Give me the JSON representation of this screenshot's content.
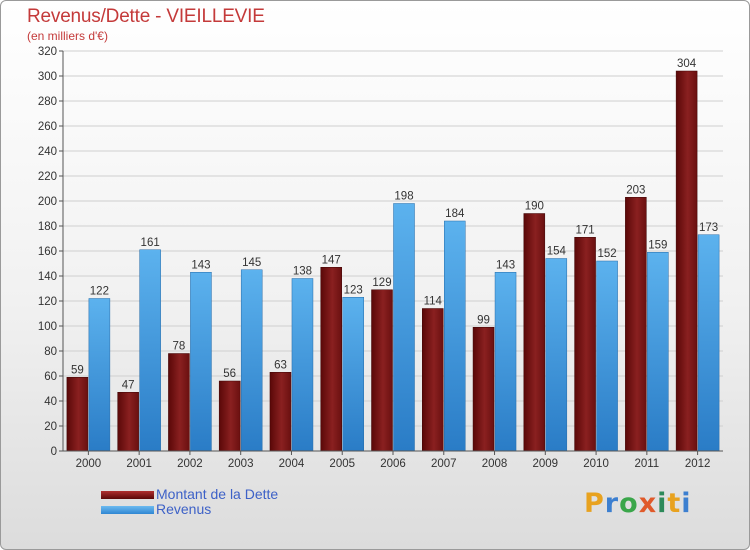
{
  "title": "Revenus/Dette - VIEILLEVIE",
  "subtitle": "(en milliers d'€)",
  "chart_data": {
    "type": "bar",
    "title": "Revenus/Dette - VIEILLEVIE",
    "ylabel": "(en milliers d'€)",
    "ylim": [
      0,
      320
    ],
    "yticks": [
      0,
      20,
      40,
      60,
      80,
      100,
      120,
      140,
      160,
      180,
      200,
      220,
      240,
      260,
      280,
      300,
      320
    ],
    "grid": true,
    "categories": [
      "2000",
      "2001",
      "2002",
      "2003",
      "2004",
      "2005",
      "2006",
      "2007",
      "2008",
      "2009",
      "2010",
      "2011",
      "2012"
    ],
    "series": [
      {
        "name": "Montant de la Dette",
        "color": "#7a1717",
        "values": [
          59,
          47,
          78,
          56,
          63,
          147,
          129,
          114,
          99,
          190,
          171,
          203,
          304
        ]
      },
      {
        "name": "Revenus",
        "color": "#3d97df",
        "values": [
          122,
          161,
          143,
          145,
          138,
          123,
          198,
          184,
          143,
          154,
          152,
          159,
          173
        ]
      }
    ],
    "legend_position": "bottom-left"
  },
  "legend": [
    {
      "label": "Montant de la Dette",
      "color": "#7a1717"
    },
    {
      "label": "Revenus",
      "color": "#3d97df"
    }
  ],
  "logo": {
    "letters": [
      "P",
      "r",
      "o",
      "x",
      "i",
      "t",
      "i"
    ],
    "colors": [
      "#e8a21f",
      "#3c7fd0",
      "#3aa64a",
      "#e05a2a",
      "#2d8a5a",
      "#e8a21f",
      "#3c7fd0"
    ]
  }
}
